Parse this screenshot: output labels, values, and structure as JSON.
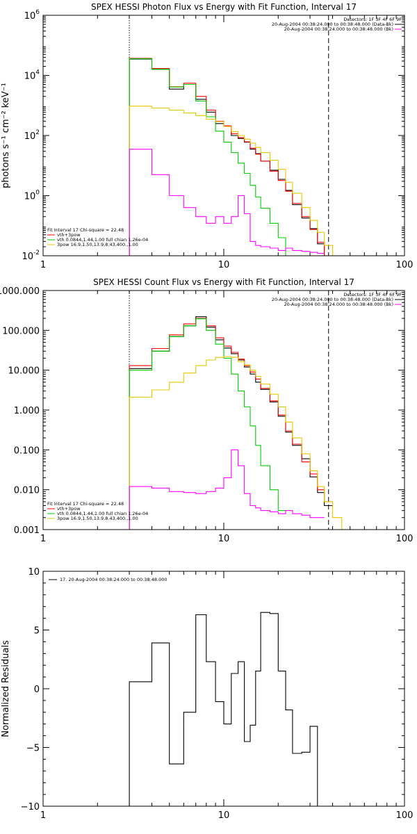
{
  "chart_data": [
    {
      "type": "line",
      "title": "SPEX HESSI Photon Flux vs Energy with Fit Function, Interval 17",
      "xlabel": "",
      "ylabel": "photons s⁻¹ cm⁻² keV⁻¹",
      "xscale": "log",
      "yscale": "log",
      "xlim": [
        1,
        100
      ],
      "ylim": [
        0.01,
        1000000
      ],
      "grid": false,
      "xticks": [
        {
          "v": 1,
          "label": "1"
        },
        {
          "v": 10,
          "label": "10"
        },
        {
          "v": 100,
          "label": "100"
        }
      ],
      "yticks": [
        {
          "v": 0.01,
          "base": "10",
          "exp": "-2"
        },
        {
          "v": 1,
          "base": "10",
          "exp": "0"
        },
        {
          "v": 100,
          "base": "10",
          "exp": "2"
        },
        {
          "v": 10000,
          "base": "10",
          "exp": "4"
        },
        {
          "v": 1000000,
          "base": "10",
          "exp": "6"
        }
      ],
      "vlines": [
        {
          "x": 3.0,
          "style": "dotted"
        },
        {
          "x": 38.0,
          "style": "dashed"
        }
      ],
      "legend_right": [
        {
          "text": "Detectors: 1F 3F 4F 6F 9F",
          "color": null
        },
        {
          "text": "20-Aug-2004 00:38:24.000 to 00:38:48.000 (Data-Bk)",
          "color": "#000000"
        },
        {
          "text": "20-Aug-2004 00:38:24.000 to 00:38:48.000 (Bk)",
          "color": "#ff00ff"
        }
      ],
      "legend_left": [
        {
          "text": "Fit Interval 17   Chi-square = 22.48",
          "color": null
        },
        {
          "text": "vth+3pow",
          "color": "#ff0000"
        },
        {
          "text": "vth 0.0844,1.44,1.00  full chian 1.26e-04",
          "color": "#00cc00"
        },
        {
          "text": "3pow 16.9,1.50,13.9,8.43,400.,1.00",
          "color": "#e6c800"
        }
      ],
      "edges": [
        3,
        4,
        5,
        6,
        7,
        8,
        9,
        10,
        11,
        12,
        13,
        14,
        15,
        16,
        18,
        20,
        22,
        24,
        27,
        30,
        33,
        36,
        40,
        45
      ],
      "series": [
        {
          "name": "Data-Bk",
          "color": "#000000",
          "values": [
            35000,
            16000,
            3500,
            5000,
            1600,
            600,
            250,
            200,
            100,
            80,
            60,
            35,
            25,
            14,
            7,
            3.5,
            1.5,
            0.5,
            0.18,
            0.08,
            0.025,
            0.01,
            null
          ]
        },
        {
          "name": "vth+3pow",
          "color": "#ff0000",
          "values": [
            37000,
            17000,
            4200,
            5500,
            2000,
            700,
            300,
            210,
            115,
            85,
            62,
            38,
            24,
            14,
            6.5,
            3.2,
            1.4,
            0.55,
            0.2,
            0.075,
            0.028,
            0.01,
            null
          ]
        },
        {
          "name": "vth",
          "color": "#00cc00",
          "values": [
            36000,
            16000,
            4100,
            5000,
            1400,
            420,
            140,
            60,
            27,
            12,
            5.5,
            2.2,
            0.9,
            0.38,
            0.12,
            0.04,
            0.01,
            null,
            null,
            null,
            null,
            null,
            null
          ]
        },
        {
          "name": "3pow",
          "color": "#e6c800",
          "values": [
            950,
            820,
            700,
            560,
            460,
            350,
            290,
            200,
            135,
            100,
            76,
            56,
            40,
            27,
            15,
            7.5,
            2.8,
            1.2,
            0.4,
            0.15,
            0.06,
            0.022,
            0.01
          ]
        },
        {
          "name": "Bk",
          "color": "#ff00ff",
          "values": [
            35,
            5,
            1,
            0.4,
            0.2,
            0.12,
            0.2,
            0.12,
            0.2,
            1,
            0.25,
            0.03,
            0.022,
            0.02,
            0.018,
            0.015,
            0.018,
            0.015,
            0.014,
            0.013,
            0.012,
            null,
            null
          ]
        }
      ]
    },
    {
      "type": "line",
      "title": "SPEX HESSI Count Flux vs Energy with Fit Function, Interval 17",
      "xlabel": "",
      "ylabel": "",
      "xscale": "log",
      "yscale": "log",
      "xlim": [
        1,
        100
      ],
      "ylim": [
        0.001,
        1000
      ],
      "grid": false,
      "xticks": [
        {
          "v": 1,
          "label": "1"
        },
        {
          "v": 10,
          "label": "10"
        },
        {
          "v": 100,
          "label": "100"
        }
      ],
      "yticks": [
        {
          "v": 0.001,
          "label": "0.001"
        },
        {
          "v": 0.01,
          "label": "0.010"
        },
        {
          "v": 0.1,
          "label": "0.100"
        },
        {
          "v": 1,
          "label": "1.000"
        },
        {
          "v": 10,
          "label": "10.000"
        },
        {
          "v": 100,
          "label": "100.000"
        },
        {
          "v": 1000,
          "label": "1000.000"
        }
      ],
      "vlines": [
        {
          "x": 3.0,
          "style": "dotted"
        },
        {
          "x": 38.0,
          "style": "dashed"
        }
      ],
      "legend_right": [
        {
          "text": "Detectors: 1F 3F 4F 6F 9F",
          "color": null
        },
        {
          "text": "20-Aug-2004 00:38:24.000 to 00:38:48.000 (Data-Bk)",
          "color": "#000000"
        },
        {
          "text": "20-Aug-2004 00:38:24.000 to 00:38:48.000 (Bk)",
          "color": "#ff00ff"
        }
      ],
      "legend_left": [
        {
          "text": "Fit Interval 17   Chi-square = 22.48",
          "color": null
        },
        {
          "text": "vth+3pow",
          "color": "#ff0000"
        },
        {
          "text": "vth 0.0844,1.44,1.00  full chian 1.26e-04",
          "color": "#00cc00"
        },
        {
          "text": "3pow 16.9,1.50,13.9,8.43,400.,1.00",
          "color": "#e6c800"
        }
      ],
      "edges": [
        3,
        4,
        5,
        6,
        7,
        8,
        9,
        10,
        11,
        12,
        13,
        14,
        15,
        16,
        18,
        20,
        22,
        24,
        27,
        30,
        33,
        36,
        40,
        45
      ],
      "series": [
        {
          "name": "Data-Bk",
          "color": "#000000",
          "values": [
            11,
            30,
            70,
            130,
            220,
            120,
            58,
            36,
            26,
            18,
            12,
            8,
            5,
            3.3,
            1.6,
            0.7,
            0.28,
            0.13,
            0.06,
            0.021,
            0.0085,
            0.004,
            null
          ]
        },
        {
          "name": "vth+3pow",
          "color": "#ff0000",
          "values": [
            13,
            35,
            77,
            145,
            200,
            130,
            65,
            40,
            28,
            19,
            13,
            9,
            6,
            3.5,
            1.7,
            0.75,
            0.3,
            0.14,
            0.05,
            0.025,
            0.01,
            0.005,
            null
          ]
        },
        {
          "name": "vth",
          "color": "#00cc00",
          "values": [
            10,
            30,
            70,
            130,
            195,
            100,
            45,
            20,
            8,
            3,
            1.2,
            0.4,
            0.13,
            0.04,
            0.01,
            0.003,
            null,
            null,
            null,
            null,
            null,
            null,
            null
          ]
        },
        {
          "name": "3pow",
          "color": "#e6c800",
          "values": [
            2.1,
            3.2,
            5,
            8.5,
            13,
            18,
            21,
            22,
            21,
            16.5,
            13.5,
            10,
            7,
            4.5,
            2.5,
            1.2,
            0.5,
            0.2,
            0.08,
            0.03,
            0.012,
            0.005,
            0.002
          ]
        },
        {
          "name": "Bk",
          "color": "#ff00ff",
          "values": [
            0.012,
            0.011,
            0.009,
            0.0085,
            0.008,
            0.009,
            0.011,
            0.02,
            0.1,
            0.04,
            0.008,
            0.004,
            0.0035,
            0.003,
            0.0028,
            0.0025,
            0.003,
            0.0025,
            0.0023,
            0.002,
            0.002,
            null,
            null
          ]
        }
      ]
    },
    {
      "type": "line",
      "title": "",
      "xlabel": "",
      "ylabel": "Normalized Residuals",
      "xscale": "log",
      "yscale": "linear",
      "xlim": [
        1,
        100
      ],
      "ylim": [
        -10,
        10
      ],
      "grid": false,
      "xticks": [
        {
          "v": 1,
          "label": "1"
        },
        {
          "v": 10,
          "label": "10"
        },
        {
          "v": 100,
          "label": "100"
        }
      ],
      "yticks": [
        {
          "v": -10,
          "label": "−10"
        },
        {
          "v": -5,
          "label": "−5"
        },
        {
          "v": 0,
          "label": "0"
        },
        {
          "v": 5,
          "label": "5"
        },
        {
          "v": 10,
          "label": "10"
        }
      ],
      "legend_left_top": [
        {
          "text": "17. 20-Aug-2004 00:38:24.000 to 00:38:48.000",
          "color": "#000000"
        }
      ],
      "edges": [
        3,
        4,
        5,
        6,
        7,
        8,
        9,
        10,
        11,
        12,
        13,
        14,
        15,
        16,
        18,
        20,
        22,
        24,
        27,
        30,
        33,
        36
      ],
      "series": [
        {
          "name": "17. 20-Aug-2004 00:38:24.000 to 00:38:48.000",
          "color": "#000000",
          "values": [
            0.6,
            3.9,
            -6.4,
            -2.0,
            6.3,
            2.3,
            -1.1,
            -3.0,
            1.3,
            2.3,
            -4.5,
            -3.1,
            1.5,
            6.5,
            6.4,
            1.5,
            -1.8,
            -5.5,
            -5.4,
            -3.2
          ],
          "final_drop_to": -10
        }
      ]
    }
  ]
}
